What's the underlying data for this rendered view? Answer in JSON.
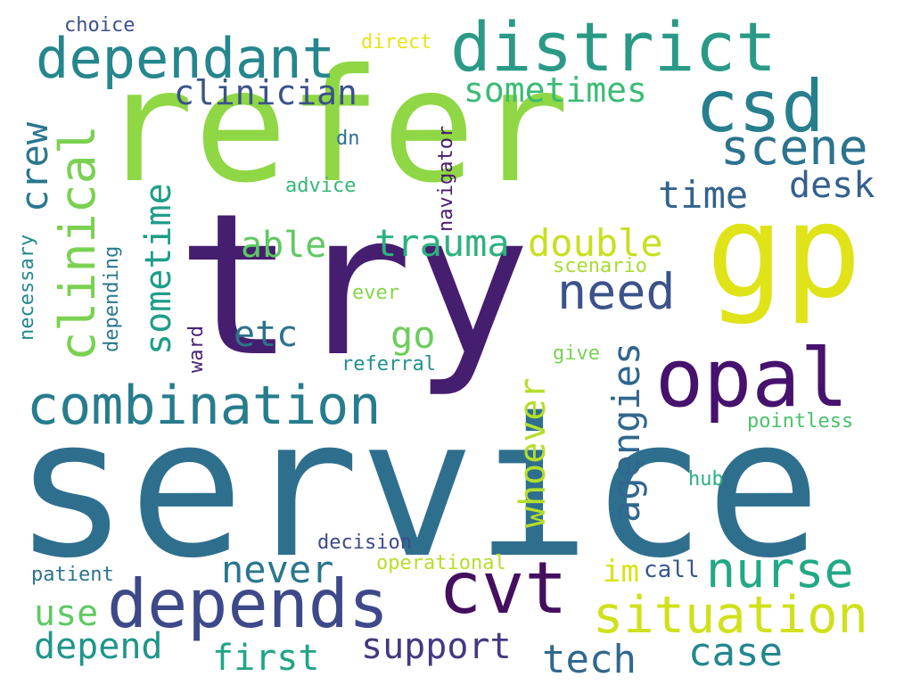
{
  "words": [
    {
      "text": "service",
      "color": "#2f6f8e",
      "vertical": false
    },
    {
      "text": "refer",
      "color": "#8fd744",
      "vertical": false
    },
    {
      "text": "try",
      "color": "#461e6f",
      "vertical": false
    },
    {
      "text": "gp",
      "color": "#dfe318",
      "vertical": false
    },
    {
      "text": "district",
      "color": "#2a9a86",
      "vertical": false
    },
    {
      "text": "csd",
      "color": "#277f8e",
      "vertical": false
    },
    {
      "text": "dependant",
      "color": "#25868d",
      "vertical": false
    },
    {
      "text": "opal",
      "color": "#46126d",
      "vertical": false
    },
    {
      "text": "combination",
      "color": "#277c8e",
      "vertical": false
    },
    {
      "text": "depends",
      "color": "#3e4989",
      "vertical": false
    },
    {
      "text": "cvt",
      "color": "#440f5f",
      "vertical": false
    },
    {
      "text": "situation",
      "color": "#d0e11c",
      "vertical": false
    },
    {
      "text": "nurse",
      "color": "#22a884",
      "vertical": false
    },
    {
      "text": "clinical",
      "color": "#7ad151",
      "vertical": true
    },
    {
      "text": "scene",
      "color": "#2c738e",
      "vertical": false
    },
    {
      "text": "need",
      "color": "#3b528b",
      "vertical": false
    },
    {
      "text": "trauma",
      "color": "#2db27d",
      "vertical": false
    },
    {
      "text": "double",
      "color": "#c8e020",
      "vertical": false
    },
    {
      "text": "able",
      "color": "#5ec962",
      "vertical": false
    },
    {
      "text": "sometimes",
      "color": "#3bbb75",
      "vertical": false
    },
    {
      "text": "clinician",
      "color": "#3a528b",
      "vertical": false
    },
    {
      "text": "time",
      "color": "#33638d",
      "vertical": false
    },
    {
      "text": "desk",
      "color": "#355f8d",
      "vertical": false
    },
    {
      "text": "crew",
      "color": "#2a778e",
      "vertical": true
    },
    {
      "text": "sometime",
      "color": "#1f9e89",
      "vertical": true
    },
    {
      "text": "etc",
      "color": "#2c728e",
      "vertical": false
    },
    {
      "text": "go",
      "color": "#6ccd5a",
      "vertical": false
    },
    {
      "text": "agengies",
      "color": "#31678e",
      "vertical": true
    },
    {
      "text": "whoever",
      "color": "#b5de2b",
      "vertical": true
    },
    {
      "text": "never",
      "color": "#2a768e",
      "vertical": false
    },
    {
      "text": "use",
      "color": "#5ec962",
      "vertical": false
    },
    {
      "text": "depend",
      "color": "#1f958b",
      "vertical": false
    },
    {
      "text": "first",
      "color": "#20a486",
      "vertical": false
    },
    {
      "text": "support",
      "color": "#453882",
      "vertical": false
    },
    {
      "text": "tech",
      "color": "#31688e",
      "vertical": false
    },
    {
      "text": "case",
      "color": "#24878e",
      "vertical": false
    },
    {
      "text": "im",
      "color": "#d8e219",
      "vertical": false
    },
    {
      "text": "call",
      "color": "#39568c",
      "vertical": false
    },
    {
      "text": "choice",
      "color": "#3b528b",
      "vertical": false
    },
    {
      "text": "direct",
      "color": "#e7e419",
      "vertical": false
    },
    {
      "text": "navigator",
      "color": "#481a6c",
      "vertical": true
    },
    {
      "text": "dn",
      "color": "#2c728e",
      "vertical": false
    },
    {
      "text": "advice",
      "color": "#35b779",
      "vertical": false
    },
    {
      "text": "necessary",
      "color": "#24878e",
      "vertical": true
    },
    {
      "text": "depending",
      "color": "#2a788e",
      "vertical": true
    },
    {
      "text": "ward",
      "color": "#482475",
      "vertical": true
    },
    {
      "text": "scenario",
      "color": "#a8db34",
      "vertical": false
    },
    {
      "text": "ever",
      "color": "#86d549",
      "vertical": false
    },
    {
      "text": "give",
      "color": "#7ad151",
      "vertical": false
    },
    {
      "text": "referral",
      "color": "#21918c",
      "vertical": false
    },
    {
      "text": "pointless",
      "color": "#4ac16d",
      "vertical": false
    },
    {
      "text": "hub",
      "color": "#29af7f",
      "vertical": false
    },
    {
      "text": "decision",
      "color": "#3e4a89",
      "vertical": false
    },
    {
      "text": "operational",
      "color": "#b5de2b",
      "vertical": false
    },
    {
      "text": "patient",
      "color": "#2c728e",
      "vertical": false
    }
  ]
}
